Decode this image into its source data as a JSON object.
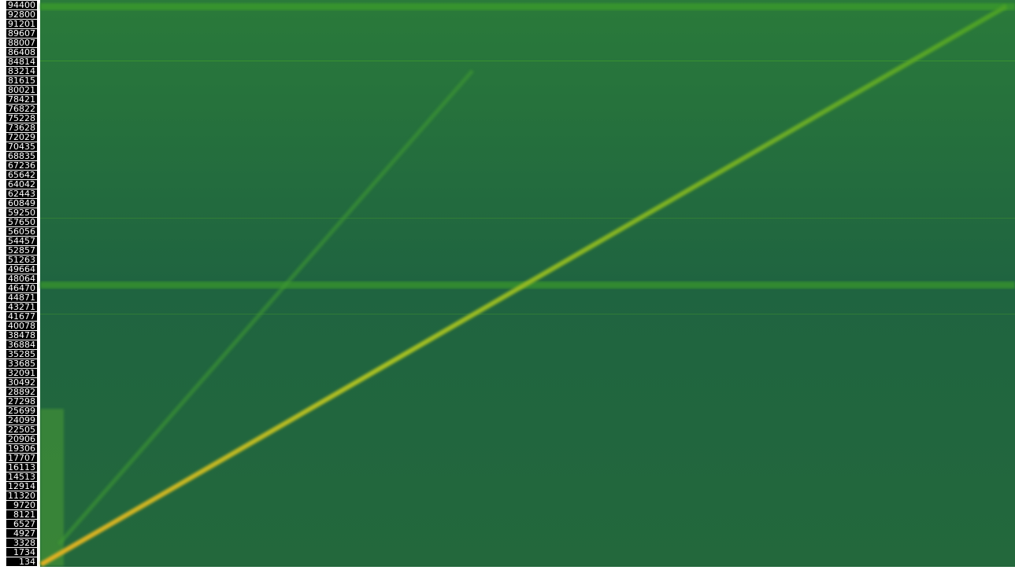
{
  "chart_data": {
    "type": "spectrogram",
    "ylim": [
      -665,
      95335
    ],
    "yticks": [
      94400,
      92800,
      91201,
      89607,
      88007,
      86408,
      84814,
      83214,
      81615,
      80021,
      78421,
      76822,
      75228,
      73628,
      72029,
      70435,
      68835,
      67236,
      65642,
      64042,
      62443,
      60849,
      59250,
      57650,
      56056,
      54457,
      52857,
      51263,
      49664,
      48064,
      46470,
      44871,
      43271,
      41677,
      40078,
      38478,
      36884,
      35285,
      33685,
      32091,
      30492,
      28892,
      27298,
      25699,
      24099,
      22505,
      20906,
      19306,
      17707,
      16113,
      14513,
      12914,
      11320,
      9720,
      8121,
      6527,
      4927,
      3328,
      1734,
      134
    ]
  }
}
